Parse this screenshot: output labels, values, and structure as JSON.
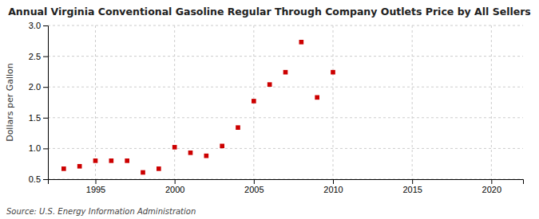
{
  "chart_data": {
    "type": "scatter",
    "title": "Annual Virginia Conventional Gasoline Regular Through Company Outlets Price by All Sellers",
    "ylabel": "Dollars per Gallon",
    "source": "Source: U.S. Energy Information Administration",
    "x": [
      1993,
      1994,
      1995,
      1996,
      1997,
      1998,
      1999,
      2000,
      2001,
      2002,
      2003,
      2004,
      2005,
      2006,
      2007,
      2008,
      2009,
      2010
    ],
    "values": [
      0.67,
      0.71,
      0.8,
      0.8,
      0.8,
      0.61,
      0.67,
      1.02,
      0.93,
      0.88,
      1.04,
      1.34,
      1.77,
      2.04,
      2.24,
      2.73,
      1.83,
      2.24
    ],
    "xlim": [
      1992,
      2022
    ],
    "ylim": [
      0.5,
      3.0
    ],
    "xticks": [
      1995,
      2000,
      2005,
      2010,
      2015,
      2020
    ],
    "yticks": [
      0.5,
      {
        "value": 1.0,
        "label": "1.0"
      },
      1.5,
      {
        "value": 2.0,
        "label": "2.0"
      },
      2.5,
      {
        "value": 3.0,
        "label": "3.0"
      }
    ],
    "color": "#cc0000",
    "marker": "square",
    "grid": true
  }
}
